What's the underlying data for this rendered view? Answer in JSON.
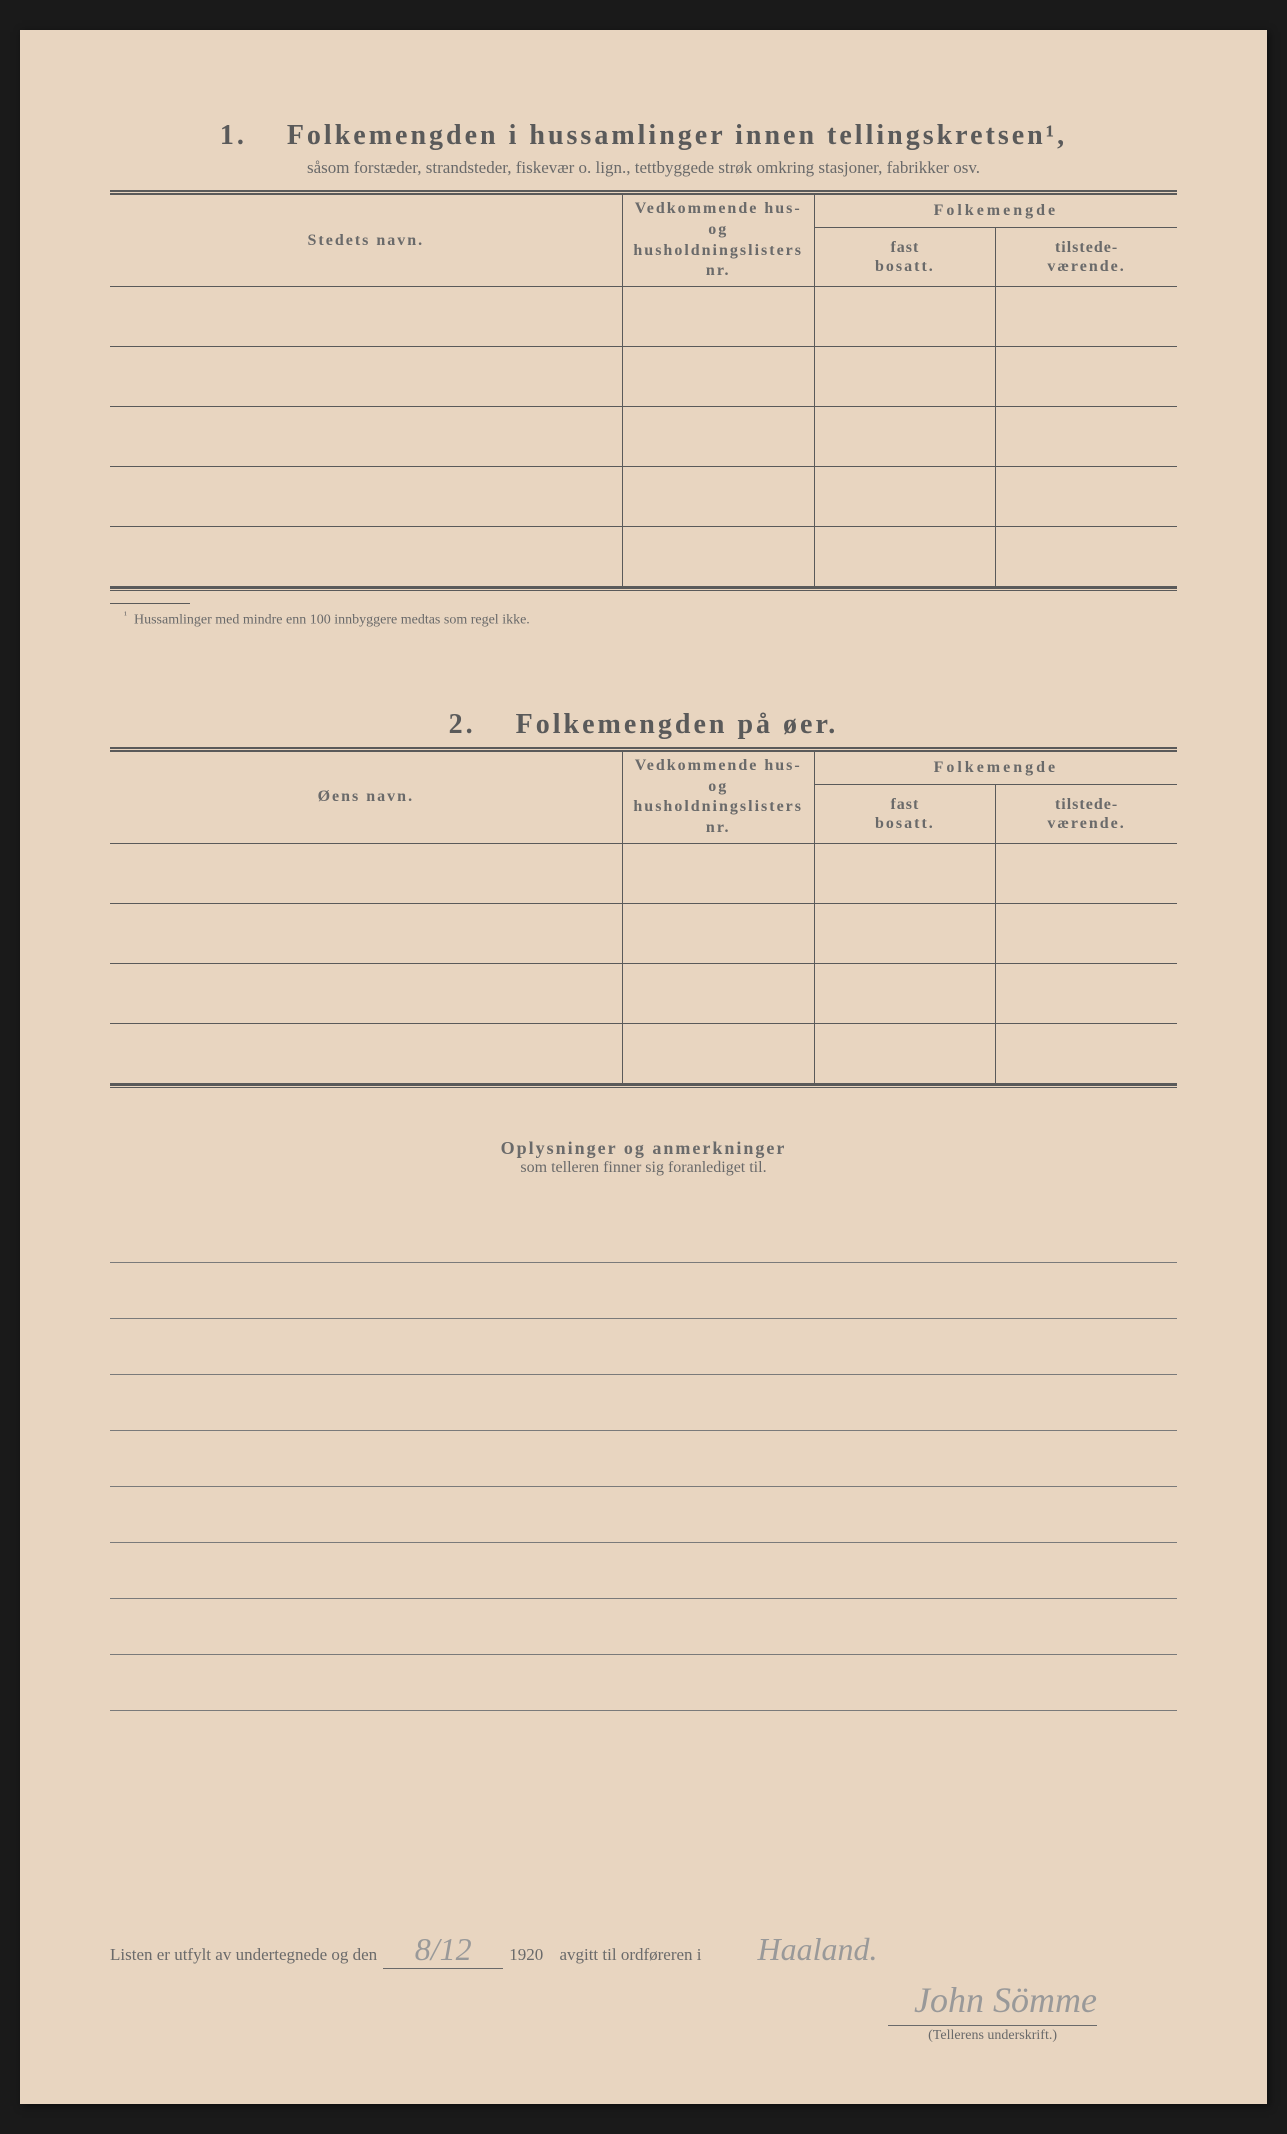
{
  "colors": {
    "paper": "#e8d5c0",
    "text": "#6a6a6a",
    "border": "#5a5a5a",
    "handwriting": "#999999",
    "background": "#1a1a1a"
  },
  "section1": {
    "number": "1.",
    "title": "Folkemengden i hussamlinger innen tellingskretsen¹,",
    "subtitle": "såsom forstæder, strandsteder, fiskevær o. lign., tettbyggede strøk omkring stasjoner, fabrikker osv.",
    "columns": {
      "name_label": "Stedets navn.",
      "lists_label_1": "Vedkommende hus- og",
      "lists_label_2": "husholdningslisters",
      "lists_label_3": "nr.",
      "pop_label": "Folkemengde",
      "fast_label": "fast",
      "fast_sublabel": "bosatt.",
      "tilstede_label": "tilstede-",
      "tilstede_sublabel": "værende."
    },
    "row_count": 5,
    "footnote": "Hussamlinger med mindre enn 100 innbyggere medtas som regel ikke.",
    "footnote_marker": "¹"
  },
  "section2": {
    "number": "2.",
    "title": "Folkemengden på øer.",
    "columns": {
      "name_label": "Øens navn.",
      "lists_label_1": "Vedkommende hus- og",
      "lists_label_2": "husholdningslisters",
      "lists_label_3": "nr.",
      "pop_label": "Folkemengde",
      "fast_label": "fast",
      "fast_sublabel": "bosatt.",
      "tilstede_label": "tilstede-",
      "tilstede_sublabel": "værende."
    },
    "row_count": 4
  },
  "remarks": {
    "title": "Oplysninger og anmerkninger",
    "subtitle": "som telleren finner sig foranlediget til.",
    "line_count": 9
  },
  "signature": {
    "text_before": "Listen er utfylt av undertegnede og den",
    "date_value": "8/12",
    "year": "1920",
    "text_after": "avgitt til ordføreren i",
    "place_value": "Haaland.",
    "signature_value": "John Sömme",
    "signature_label": "(Tellerens underskrift.)"
  }
}
